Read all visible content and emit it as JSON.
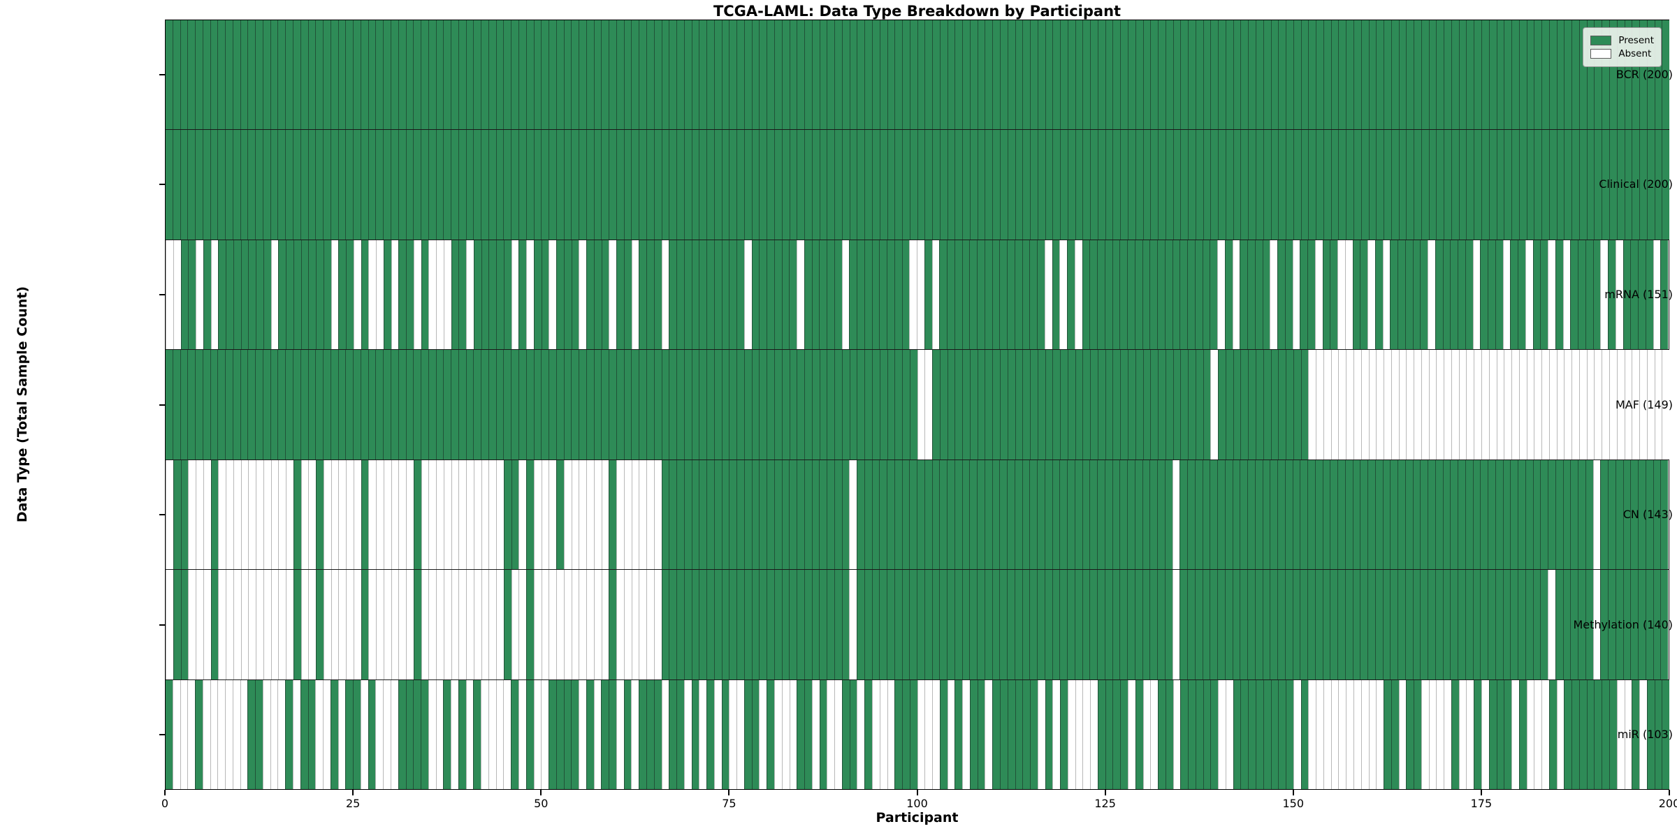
{
  "title": "TCGA-LAML: Data Type Breakdown by Participant",
  "x_axis": {
    "label": "Participant",
    "ticks": [
      0,
      25,
      50,
      75,
      100,
      125,
      150,
      175,
      200
    ],
    "range": [
      0,
      200
    ]
  },
  "y_axis": {
    "label": "Data Type (Total Sample Count)"
  },
  "legend": {
    "present_label": "Present",
    "absent_label": "Absent",
    "position": "upper right"
  },
  "colors": {
    "present": "#2E8B57",
    "absent": "#FFFFFF",
    "row_divider": "#1a1a1a",
    "frame": "#000000"
  },
  "chart_data": {
    "type": "heatmap",
    "grid": false,
    "n_participants": 200,
    "value_encoding": {
      "present": 1,
      "absent": 0
    },
    "rows": [
      {
        "label": "BCR",
        "count": 200,
        "absent": []
      },
      {
        "label": "Clinical",
        "count": 200,
        "absent": []
      },
      {
        "label": "mRNA",
        "count": 151,
        "absent": [
          0,
          1,
          4,
          6,
          14,
          22,
          25,
          27,
          28,
          30,
          33,
          35,
          36,
          37,
          40,
          46,
          48,
          51,
          55,
          59,
          62,
          66,
          77,
          84,
          90,
          99,
          100,
          102,
          117,
          119,
          121,
          140,
          142,
          147,
          150,
          153,
          156,
          157,
          160,
          162,
          168,
          174,
          178,
          181,
          184,
          186,
          191,
          193,
          198
        ]
      },
      {
        "label": "MAF",
        "count": 149,
        "absent": [
          100,
          101,
          139,
          152,
          153,
          154,
          155,
          156,
          157,
          158,
          159,
          160,
          161,
          162,
          163,
          164,
          165,
          166,
          167,
          168,
          169,
          170,
          171,
          172,
          173,
          174,
          175,
          176,
          177,
          178,
          179,
          180,
          181,
          182,
          183,
          184,
          185,
          186,
          187,
          188,
          189,
          190,
          191,
          192,
          193,
          194,
          195,
          196,
          197,
          198,
          199
        ]
      },
      {
        "label": "CN",
        "count": 143,
        "absent": [
          0,
          3,
          4,
          5,
          7,
          8,
          9,
          10,
          11,
          12,
          13,
          14,
          15,
          16,
          18,
          19,
          21,
          22,
          23,
          24,
          25,
          27,
          28,
          29,
          30,
          31,
          32,
          34,
          35,
          36,
          37,
          38,
          39,
          40,
          41,
          42,
          43,
          44,
          47,
          49,
          50,
          51,
          53,
          54,
          55,
          56,
          57,
          58,
          60,
          61,
          62,
          63,
          64,
          65,
          91,
          134,
          190
        ]
      },
      {
        "label": "Methylation",
        "count": 140,
        "absent": [
          0,
          3,
          4,
          5,
          7,
          8,
          9,
          10,
          11,
          12,
          13,
          14,
          15,
          16,
          18,
          19,
          21,
          22,
          23,
          24,
          25,
          27,
          28,
          29,
          30,
          31,
          32,
          34,
          35,
          36,
          37,
          38,
          39,
          40,
          41,
          42,
          43,
          44,
          46,
          47,
          49,
          50,
          51,
          52,
          53,
          54,
          55,
          56,
          57,
          58,
          60,
          61,
          62,
          63,
          64,
          65,
          91,
          134,
          184,
          190
        ]
      },
      {
        "label": "miR",
        "count": 103,
        "absent": [
          1,
          2,
          3,
          5,
          6,
          7,
          8,
          9,
          10,
          13,
          14,
          15,
          17,
          20,
          21,
          23,
          26,
          28,
          29,
          30,
          35,
          36,
          38,
          40,
          42,
          43,
          44,
          45,
          47,
          49,
          50,
          55,
          57,
          60,
          62,
          66,
          69,
          71,
          73,
          75,
          76,
          79,
          81,
          82,
          83,
          86,
          88,
          89,
          92,
          94,
          95,
          96,
          100,
          101,
          102,
          104,
          106,
          109,
          116,
          118,
          120,
          121,
          122,
          123,
          128,
          130,
          131,
          134,
          140,
          141,
          150,
          152,
          153,
          154,
          155,
          156,
          157,
          158,
          159,
          160,
          161,
          164,
          167,
          168,
          169,
          170,
          172,
          173,
          175,
          179,
          181,
          182,
          183,
          185,
          193,
          194,
          196
        ]
      }
    ]
  }
}
